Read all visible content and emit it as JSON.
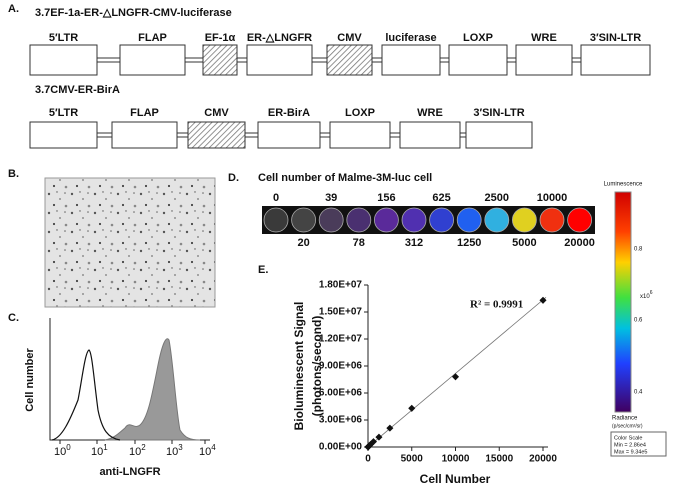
{
  "panel_a": {
    "label": "A.",
    "constructs": [
      {
        "title": "3.7EF-1a-ER-△LNGFR-CMV-luciferase",
        "elements": [
          {
            "label": "5′LTR",
            "hatched": false
          },
          {
            "label": "FLAP",
            "hatched": false
          },
          {
            "label": "EF-1α",
            "hatched": true
          },
          {
            "label": "ER-△LNGFR",
            "hatched": false
          },
          {
            "label": "CMV",
            "hatched": true
          },
          {
            "label": "luciferase",
            "hatched": false
          },
          {
            "label": "LOXP",
            "hatched": false
          },
          {
            "label": "WRE",
            "hatched": false
          },
          {
            "label": "3′SIN-LTR",
            "hatched": false
          }
        ]
      },
      {
        "title": "3.7CMV-ER-BirA",
        "elements": [
          {
            "label": "5′LTR",
            "hatched": false
          },
          {
            "label": "FLAP",
            "hatched": false
          },
          {
            "label": "CMV",
            "hatched": true
          },
          {
            "label": "ER-BirA",
            "hatched": false
          },
          {
            "label": "LOXP",
            "hatched": false
          },
          {
            "label": "WRE",
            "hatched": false
          },
          {
            "label": "3′SIN-LTR",
            "hatched": false
          }
        ]
      }
    ]
  },
  "panel_b": {
    "label": "B."
  },
  "panel_c": {
    "label": "C.",
    "y_label": "Cell number",
    "x_label": "anti-LNGFR",
    "x_ticks": [
      {
        "base": "10",
        "exponent": "0"
      },
      {
        "base": "10",
        "exponent": "1"
      },
      {
        "base": "10",
        "exponent": "2"
      },
      {
        "base": "10",
        "exponent": "3"
      },
      {
        "base": "10",
        "exponent": "4"
      }
    ]
  },
  "panel_d": {
    "label": "D.",
    "title": "Cell number of Malme-3M-luc cell",
    "wells": [
      "0",
      "20",
      "39",
      "78",
      "156",
      "312",
      "625",
      "1250",
      "2500",
      "5000",
      "10000",
      "20000"
    ],
    "well_colors": [
      "#3a3a3a",
      "#444",
      "#4a3c5a",
      "#4a3070",
      "#5a2a9a",
      "#5030b0",
      "#3040d0",
      "#2060f0",
      "#30b0e0",
      "#e0d020",
      "#f03010",
      "#ff0000"
    ]
  },
  "colorbar": {
    "title": "Luminescence",
    "ticks": [
      "0.8",
      "0.6",
      "0.4"
    ],
    "multiplier_base": "x10",
    "multiplier_exponent": "6",
    "radiance": "Radiance",
    "radiance_unit": "(p/sec/cm²/sr)",
    "scale_title": "Color Scale",
    "scale_min": "Min = 2.86e4",
    "scale_max": "Max = 9.34e5"
  },
  "panel_e": {
    "label": "E."
  },
  "chart_data": {
    "type": "scatter",
    "y_label": "Bioluminescent  Signal",
    "y_label_unit": "(photons/second)",
    "x_label": "Cell Number",
    "annotation": "R² = 0.9991",
    "x": [
      0,
      20,
      39,
      78,
      156,
      312,
      625,
      1250,
      2500,
      5000,
      10000,
      20000
    ],
    "values": [
      0,
      20000,
      40000,
      70000,
      150000,
      300000,
      600000,
      1100000,
      2100000,
      4300000,
      7800000,
      16300000
    ],
    "color": "#111111",
    "xlim": [
      0,
      20000
    ],
    "xticks": [
      0,
      5000,
      10000,
      15000,
      20000
    ],
    "ylim": [
      0,
      18000000
    ],
    "yticks": [
      {
        "value": 0,
        "label": "0.00E+00"
      },
      {
        "value": 3000000,
        "label": "3.00E+06"
      },
      {
        "value": 6000000,
        "label": "6.00E+06"
      },
      {
        "value": 9000000,
        "label": "9.00E+06"
      },
      {
        "value": 12000000,
        "label": "1.20E+07"
      },
      {
        "value": 15000000,
        "label": "1.50E+07"
      },
      {
        "value": 18000000,
        "label": "1.80E+07"
      }
    ],
    "trendline": true
  }
}
